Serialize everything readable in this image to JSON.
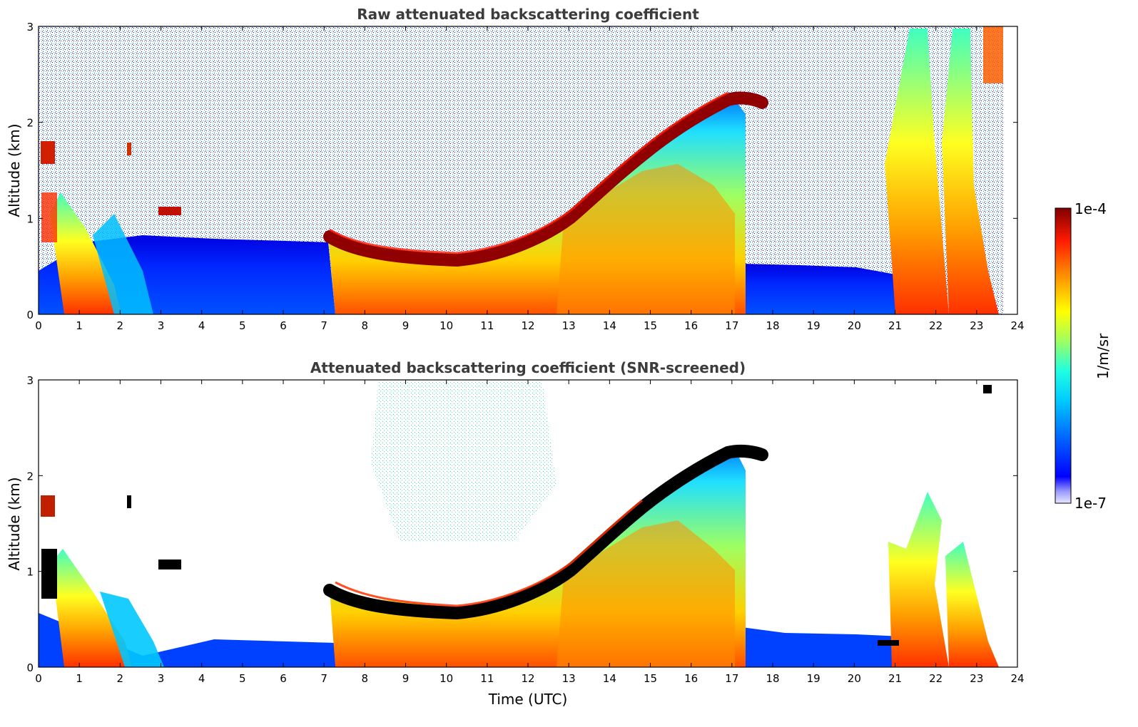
{
  "chart_data": [
    {
      "type": "heatmap",
      "title": "Raw attenuated backscattering coefficient",
      "xlabel": "",
      "ylabel": "Altitude (km)",
      "xlim": [
        0,
        24
      ],
      "ylim": [
        0,
        3
      ],
      "xticks": [
        "0",
        "1",
        "2",
        "3",
        "4",
        "5",
        "6",
        "7",
        "8",
        "9",
        "10",
        "11",
        "12",
        "13",
        "14",
        "15",
        "16",
        "17",
        "18",
        "19",
        "20",
        "21",
        "22",
        "23",
        "24"
      ],
      "yticks": [
        "0",
        "1",
        "2",
        "3"
      ],
      "features": {
        "boundary_layer_top_km": [
          {
            "t": 0,
            "z": 0.55
          },
          {
            "t": 1,
            "z": 0.85
          },
          {
            "t": 2,
            "z": 0.8
          },
          {
            "t": 3,
            "z": 0.75
          },
          {
            "t": 4,
            "z": 0.7
          },
          {
            "t": 5,
            "z": 0.7
          },
          {
            "t": 6,
            "z": 0.75
          },
          {
            "t": 7,
            "z": 0.8
          },
          {
            "t": 7.1,
            "z": 0.83
          },
          {
            "t": 8,
            "z": 0.65
          },
          {
            "t": 9,
            "z": 0.58
          },
          {
            "t": 10,
            "z": 0.55
          },
          {
            "t": 11,
            "z": 0.6
          },
          {
            "t": 12,
            "z": 0.75
          },
          {
            "t": 13,
            "z": 1.0
          },
          {
            "t": 14,
            "z": 1.4
          },
          {
            "t": 15,
            "z": 1.75
          },
          {
            "t": 16,
            "z": 2.05
          },
          {
            "t": 17,
            "z": 2.3
          },
          {
            "t": 17.8,
            "z": 2.2
          }
        ]
      }
    },
    {
      "type": "heatmap",
      "title": "Attenuated backscattering coefficient (SNR-screened)",
      "xlabel": "Time (UTC)",
      "ylabel": "Altitude (km)",
      "xlim": [
        0,
        24
      ],
      "ylim": [
        0,
        3
      ],
      "xticks": [
        "0",
        "1",
        "2",
        "3",
        "4",
        "5",
        "6",
        "7",
        "8",
        "9",
        "10",
        "11",
        "12",
        "13",
        "14",
        "15",
        "16",
        "17",
        "18",
        "19",
        "20",
        "21",
        "22",
        "23",
        "24"
      ],
      "yticks": [
        "0",
        "1",
        "2",
        "3"
      ]
    }
  ],
  "colorbar": {
    "label": "1/m/sr",
    "max_label": "1e-4",
    "min_label": "1e-7",
    "colors": [
      "#e8e8ff",
      "#0000ff",
      "#00a0ff",
      "#00ffff",
      "#80ff80",
      "#ffff00",
      "#ff8000",
      "#ff0000",
      "#800000"
    ]
  }
}
